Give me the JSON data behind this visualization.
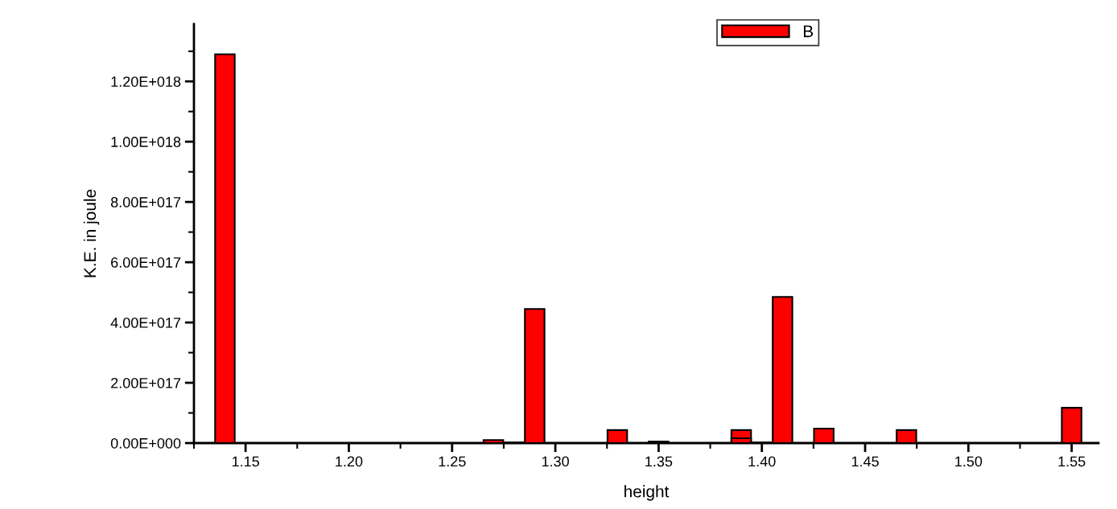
{
  "chart_data": {
    "type": "bar",
    "xlabel": "height",
    "ylabel": "K.E. in joule",
    "x": [
      1.14,
      1.27,
      1.28,
      1.29,
      1.33,
      1.35,
      1.39,
      1.4,
      1.41,
      1.43,
      1.47,
      1.55
    ],
    "series": [
      {
        "name": "B",
        "color": "#ff0000",
        "values": [
          1.29e+18,
          1e+16,
          2000000000000000.0,
          4.45e+17,
          4.3e+16,
          5000000000000000.0,
          4.3e+16,
          2000000000000000.0,
          4.85e+17,
          4.8e+16,
          4.3e+16,
          1.17e+17
        ]
      },
      {
        "color": "#ff0000",
        "x": [
          1.39
        ],
        "values": [
          1.6e+16
        ]
      }
    ],
    "xlim": [
      1.125,
      1.563
    ],
    "ylim": [
      0,
      1.39e+18
    ],
    "xticks": [
      {
        "value": 1.15,
        "label": "1.15"
      },
      {
        "value": 1.2,
        "label": "1.20"
      },
      {
        "value": 1.25,
        "label": "1.25"
      },
      {
        "value": 1.3,
        "label": "1.30"
      },
      {
        "value": 1.35,
        "label": "1.35"
      },
      {
        "value": 1.4,
        "label": "1.40"
      },
      {
        "value": 1.45,
        "label": "1.45"
      },
      {
        "value": 1.5,
        "label": "1.50"
      },
      {
        "value": 1.55,
        "label": "1.55"
      }
    ],
    "yticks": [
      {
        "value": 0,
        "label": "0.00E+000"
      },
      {
        "value": 2e+17,
        "label": "2.00E+017"
      },
      {
        "value": 4e+17,
        "label": "4.00E+017"
      },
      {
        "value": 6e+17,
        "label": "6.00E+017"
      },
      {
        "value": 8e+17,
        "label": "8.00E+017"
      },
      {
        "value": 1e+18,
        "label": "1.00E+018"
      },
      {
        "value": 1.2e+18,
        "label": "1.20E+018"
      }
    ],
    "legend": "top right",
    "grid": false
  }
}
